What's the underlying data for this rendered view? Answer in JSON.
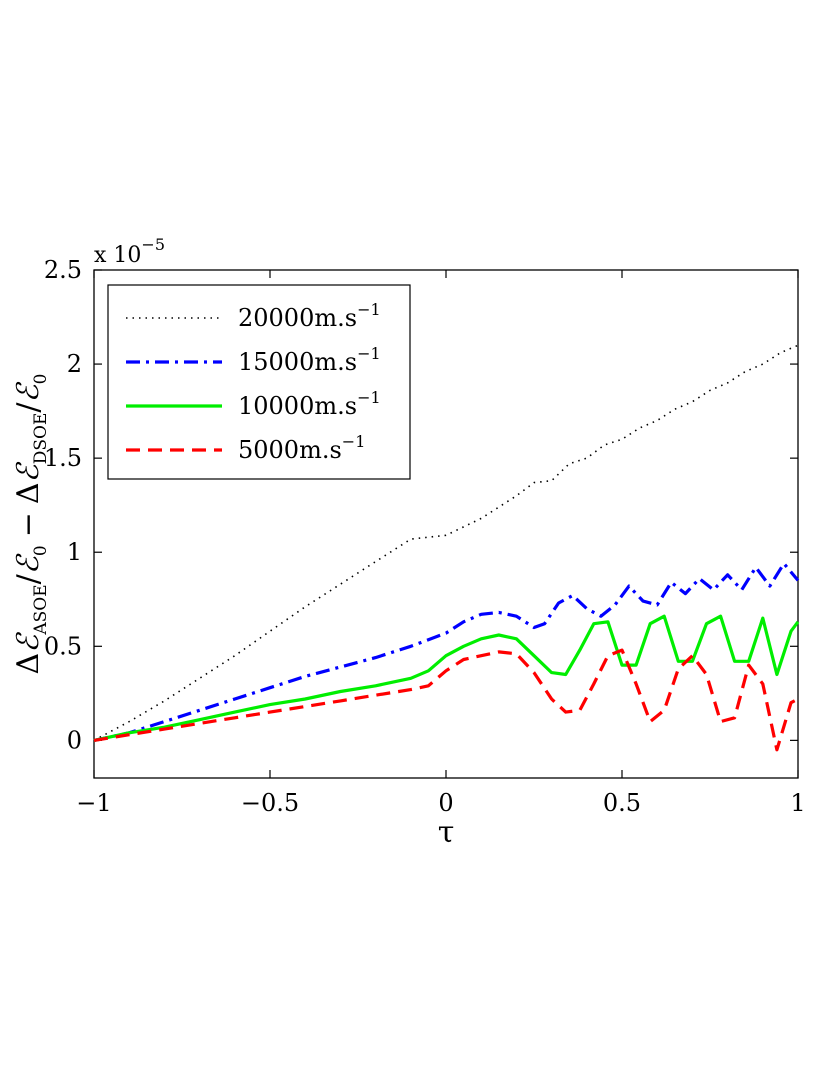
{
  "chart_data": {
    "type": "line",
    "title": "",
    "xlabel": "τ",
    "ylabel": "ΔE_ASOE/E_0 − ΔE_DSOE/E_0",
    "ylabel_parts": {
      "delta": "Δ",
      "E": "ℰ",
      "asoe": "ASOE",
      "zero": "0",
      "minus": "−",
      "dsoe": "DSOE",
      "slash": "/"
    },
    "exponent_base": "x 10",
    "exponent_power": "−5",
    "xlim": [
      -1,
      1
    ],
    "ylim": [
      -0.2,
      2.5
    ],
    "xticks": [
      -1,
      -0.5,
      0,
      0.5,
      1
    ],
    "xtick_labels": [
      "−1",
      "−0.5",
      "0",
      "0.5",
      "1"
    ],
    "yticks": [
      0,
      0.5,
      1,
      1.5,
      2,
      2.5
    ],
    "ytick_labels": [
      "0",
      "0.5",
      "1",
      "1.5",
      "2",
      "2.5"
    ],
    "legend_position": "top-left",
    "series": [
      {
        "name": "20000m.s−1",
        "label_main": "20000m.s",
        "label_sup": "−1",
        "color": "#000000",
        "style": "dotted",
        "x": [
          -1,
          -0.9,
          -0.8,
          -0.7,
          -0.6,
          -0.5,
          -0.4,
          -0.3,
          -0.2,
          -0.1,
          0,
          0.1,
          0.2,
          0.25,
          0.3,
          0.35,
          0.4,
          0.45,
          0.5,
          0.55,
          0.6,
          0.65,
          0.7,
          0.75,
          0.8,
          0.85,
          0.9,
          0.95,
          1
        ],
        "values": [
          0,
          0.1,
          0.21,
          0.33,
          0.45,
          0.58,
          0.71,
          0.83,
          0.95,
          1.07,
          1.09,
          1.18,
          1.3,
          1.37,
          1.38,
          1.47,
          1.5,
          1.57,
          1.6,
          1.66,
          1.7,
          1.76,
          1.8,
          1.86,
          1.9,
          1.96,
          2.0,
          2.06,
          2.1
        ]
      },
      {
        "name": "15000m.s−1",
        "label_main": "15000m.s",
        "label_sup": "−1",
        "color": "#0000ff",
        "style": "dashdot",
        "x": [
          -1,
          -0.9,
          -0.8,
          -0.7,
          -0.6,
          -0.5,
          -0.4,
          -0.3,
          -0.2,
          -0.1,
          0,
          0.05,
          0.1,
          0.15,
          0.2,
          0.25,
          0.28,
          0.32,
          0.36,
          0.4,
          0.44,
          0.48,
          0.52,
          0.56,
          0.6,
          0.64,
          0.68,
          0.72,
          0.76,
          0.8,
          0.84,
          0.88,
          0.92,
          0.96,
          1
        ],
        "values": [
          0,
          0.04,
          0.1,
          0.16,
          0.22,
          0.28,
          0.34,
          0.39,
          0.44,
          0.5,
          0.57,
          0.63,
          0.67,
          0.68,
          0.66,
          0.6,
          0.62,
          0.73,
          0.77,
          0.7,
          0.66,
          0.72,
          0.82,
          0.74,
          0.72,
          0.84,
          0.78,
          0.86,
          0.8,
          0.88,
          0.8,
          0.92,
          0.82,
          0.94,
          0.85
        ]
      },
      {
        "name": "10000m.s−1",
        "label_main": "10000m.s",
        "label_sup": "−1",
        "color": "#00ee00",
        "style": "solid",
        "x": [
          -1,
          -0.9,
          -0.8,
          -0.7,
          -0.6,
          -0.5,
          -0.4,
          -0.3,
          -0.2,
          -0.1,
          -0.05,
          0,
          0.05,
          0.1,
          0.15,
          0.2,
          0.25,
          0.3,
          0.34,
          0.38,
          0.42,
          0.46,
          0.5,
          0.54,
          0.58,
          0.62,
          0.66,
          0.7,
          0.74,
          0.78,
          0.82,
          0.86,
          0.9,
          0.94,
          0.98,
          1
        ],
        "values": [
          0,
          0.04,
          0.07,
          0.11,
          0.15,
          0.19,
          0.22,
          0.26,
          0.29,
          0.33,
          0.37,
          0.45,
          0.5,
          0.54,
          0.56,
          0.54,
          0.45,
          0.36,
          0.35,
          0.48,
          0.62,
          0.63,
          0.4,
          0.4,
          0.62,
          0.66,
          0.42,
          0.42,
          0.62,
          0.66,
          0.42,
          0.42,
          0.65,
          0.35,
          0.58,
          0.63
        ]
      },
      {
        "name": "5000m.s−1",
        "label_main": "5000m.s",
        "label_sup": "−1",
        "color": "#ff0000",
        "style": "dashed",
        "x": [
          -1,
          -0.9,
          -0.8,
          -0.7,
          -0.6,
          -0.5,
          -0.4,
          -0.3,
          -0.2,
          -0.1,
          -0.05,
          0,
          0.05,
          0.1,
          0.15,
          0.2,
          0.25,
          0.3,
          0.34,
          0.38,
          0.42,
          0.46,
          0.5,
          0.54,
          0.58,
          0.62,
          0.66,
          0.7,
          0.74,
          0.78,
          0.82,
          0.86,
          0.9,
          0.94,
          0.98,
          1
        ],
        "values": [
          0,
          0.03,
          0.06,
          0.09,
          0.12,
          0.15,
          0.18,
          0.21,
          0.24,
          0.27,
          0.29,
          0.37,
          0.43,
          0.45,
          0.47,
          0.46,
          0.36,
          0.22,
          0.15,
          0.16,
          0.3,
          0.45,
          0.48,
          0.3,
          0.1,
          0.16,
          0.38,
          0.45,
          0.35,
          0.1,
          0.12,
          0.4,
          0.3,
          -0.05,
          0.2,
          0.22
        ]
      }
    ]
  }
}
